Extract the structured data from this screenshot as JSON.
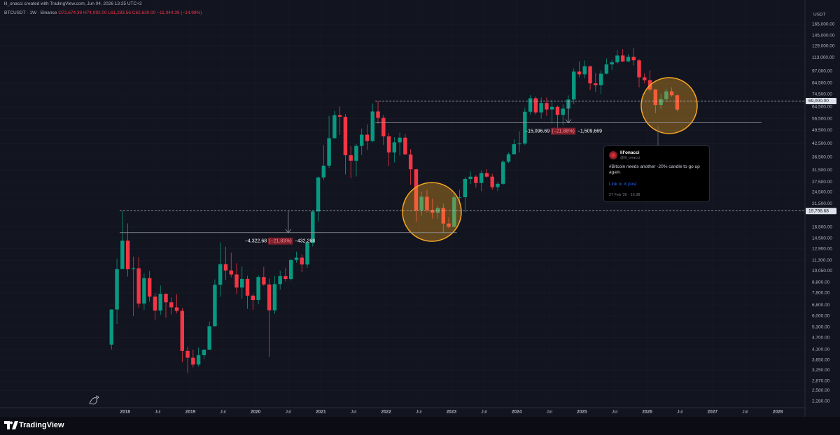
{
  "header": {
    "credit": "lil_onacci created with TradingView.com, Jun 04, 2026 13:25 UTC+2"
  },
  "readout": {
    "symbol": "BTCUSDT · 1W · Binance",
    "open": "O73,674.39",
    "high": "H74,092.00",
    "low": "L61,283.56",
    "close": "C62,630.00",
    "change": "−11,044.39 (−14.99%)"
  },
  "currency": "USDT",
  "chart_data": {
    "type": "candlestick",
    "log_scale": true,
    "grid": true,
    "up_color": "#089981",
    "down_color": "#f23645",
    "xlim": [
      "2016-02",
      "2028-06"
    ],
    "xticks": [
      {
        "value": "2018-01",
        "label": "2018"
      },
      {
        "value": "2018-07",
        "label": "Jul"
      },
      {
        "value": "2019-01",
        "label": "2019"
      },
      {
        "value": "2019-07",
        "label": "Jul"
      },
      {
        "value": "2020-01",
        "label": "2020"
      },
      {
        "value": "2020-07",
        "label": "Jul"
      },
      {
        "value": "2021-01",
        "label": "2021"
      },
      {
        "value": "2021-07",
        "label": "Jul"
      },
      {
        "value": "2022-01",
        "label": "2022"
      },
      {
        "value": "2022-07",
        "label": "Jul"
      },
      {
        "value": "2023-01",
        "label": "2023"
      },
      {
        "value": "2023-07",
        "label": "Jul"
      },
      {
        "value": "2024-01",
        "label": "2024"
      },
      {
        "value": "2024-07",
        "label": "Jul"
      },
      {
        "value": "2025-01",
        "label": "2025"
      },
      {
        "value": "2025-07",
        "label": "Jul"
      },
      {
        "value": "2026-01",
        "label": "2026"
      },
      {
        "value": "2026-07",
        "label": "Jul"
      },
      {
        "value": "2027-01",
        "label": "2027"
      },
      {
        "value": "2027-07",
        "label": "Jul"
      },
      {
        "value": "2028-01",
        "label": "2028"
      }
    ],
    "ylim": [
      2120,
      193000
    ],
    "yticks": [
      {
        "value": 165000,
        "label": "165,000.00"
      },
      {
        "value": 145000,
        "label": "145,000.00"
      },
      {
        "value": 129000,
        "label": "129,000.00"
      },
      {
        "value": 113000,
        "label": "113,000.00"
      },
      {
        "value": 97000,
        "label": "97,000.00"
      },
      {
        "value": 84500,
        "label": "84,500.00"
      },
      {
        "value": 74500,
        "label": "74,500.00"
      },
      {
        "value": 64500,
        "label": "64,500.00"
      },
      {
        "value": 56500,
        "label": "56,500.00"
      },
      {
        "value": 49500,
        "label": "49,500.00"
      },
      {
        "value": 42500,
        "label": "42,500.00"
      },
      {
        "value": 36500,
        "label": "36,500.00"
      },
      {
        "value": 31500,
        "label": "31,500.00"
      },
      {
        "value": 27500,
        "label": "27,500.00"
      },
      {
        "value": 24500,
        "label": "24,500.00"
      },
      {
        "value": 21500,
        "label": "21,500.00"
      },
      {
        "value": 16500,
        "label": "16,500.00"
      },
      {
        "value": 14500,
        "label": "14,500.00"
      },
      {
        "value": 12900,
        "label": "12,900.00"
      },
      {
        "value": 11300,
        "label": "11,300.00"
      },
      {
        "value": 10050,
        "label": "10,050.00"
      },
      {
        "value": 8800,
        "label": "8,800.00"
      },
      {
        "value": 7800,
        "label": "7,800.00"
      },
      {
        "value": 6800,
        "label": "6,800.00"
      },
      {
        "value": 6000,
        "label": "6,000.00"
      },
      {
        "value": 5300,
        "label": "5,300.00"
      },
      {
        "value": 4700,
        "label": "4,700.00"
      },
      {
        "value": 4100,
        "label": "4,100.00"
      },
      {
        "value": 3650,
        "label": "3,650.00"
      },
      {
        "value": 3250,
        "label": "3,250.00"
      },
      {
        "value": 2870,
        "label": "2,870.00"
      },
      {
        "value": 2580,
        "label": "2,580.00"
      },
      {
        "value": 2280,
        "label": "2,280.00"
      }
    ],
    "x": [
      "2017-10",
      "2017-11",
      "2017-12",
      "2018-01",
      "2018-02",
      "2018-03",
      "2018-04",
      "2018-05",
      "2018-06",
      "2018-07",
      "2018-08",
      "2018-09",
      "2018-10",
      "2018-11",
      "2018-12",
      "2019-01",
      "2019-02",
      "2019-03",
      "2019-04",
      "2019-05",
      "2019-06",
      "2019-07",
      "2019-08",
      "2019-09",
      "2019-10",
      "2019-11",
      "2019-12",
      "2020-01",
      "2020-02",
      "2020-03",
      "2020-04",
      "2020-05",
      "2020-06",
      "2020-07",
      "2020-08",
      "2020-09",
      "2020-10",
      "2020-11",
      "2020-12",
      "2021-01",
      "2021-02",
      "2021-03",
      "2021-04",
      "2021-05",
      "2021-06",
      "2021-07",
      "2021-08",
      "2021-09",
      "2021-10",
      "2021-11",
      "2021-12",
      "2022-01",
      "2022-02",
      "2022-03",
      "2022-04",
      "2022-05",
      "2022-06",
      "2022-07",
      "2022-08",
      "2022-09",
      "2022-10",
      "2022-11",
      "2022-12",
      "2023-01",
      "2023-02",
      "2023-03",
      "2023-04",
      "2023-05",
      "2023-06",
      "2023-07",
      "2023-08",
      "2023-09",
      "2023-10",
      "2023-11",
      "2023-12",
      "2024-01",
      "2024-02",
      "2024-03",
      "2024-04",
      "2024-05",
      "2024-06",
      "2024-07",
      "2024-08",
      "2024-09",
      "2024-10",
      "2024-11",
      "2024-12",
      "2025-01",
      "2025-02",
      "2025-03",
      "2025-04",
      "2025-05",
      "2025-06",
      "2025-07",
      "2025-08",
      "2025-09",
      "2025-10",
      "2025-11",
      "2025-12",
      "2026-01",
      "2026-02",
      "2026-03",
      "2026-04",
      "2026-05",
      "2026-06"
    ],
    "open": [
      4340,
      6470,
      10230,
      14150,
      10220,
      10330,
      6920,
      9240,
      7490,
      6390,
      7730,
      7020,
      6630,
      6370,
      4040,
      3740,
      3460,
      3850,
      4100,
      5350,
      8570,
      10820,
      10080,
      9630,
      8300,
      9150,
      7570,
      7200,
      9350,
      8600,
      6410,
      8630,
      9450,
      9140,
      11350,
      11650,
      10780,
      13800,
      19700,
      28990,
      33140,
      45240,
      58800,
      57720,
      37300,
      35040,
      41460,
      47100,
      43820,
      61300,
      57000,
      46200,
      38480,
      43190,
      45540,
      37640,
      31790,
      19940,
      23290,
      20050,
      19420,
      20490,
      17170,
      16540,
      23130,
      23150,
      28480,
      29230,
      27220,
      30470,
      29230,
      25940,
      26960,
      34640,
      37720,
      42280,
      42580,
      61130,
      71280,
      60670,
      67530,
      62680,
      64630,
      58970,
      63330,
      70220,
      96400,
      93430,
      102430,
      84350,
      82550,
      94200,
      104600,
      107150,
      115760,
      108240,
      114050,
      109600,
      90400,
      87500,
      78600,
      66000,
      70500,
      77000,
      73674.39
    ],
    "high": [
      6470,
      11500,
      19798.68,
      17200,
      11800,
      11700,
      9750,
      10000,
      7780,
      8490,
      7760,
      7410,
      7680,
      6600,
      4240,
      4100,
      4200,
      4120,
      5640,
      9100,
      13880,
      13200,
      12330,
      10950,
      10540,
      9510,
      7750,
      9580,
      10500,
      9190,
      9460,
      10070,
      10380,
      11440,
      12480,
      12090,
      14100,
      19900,
      29300,
      41950,
      58350,
      61780,
      64850,
      59500,
      41330,
      42400,
      50500,
      52920,
      67000,
      69000,
      59040,
      47990,
      45800,
      48190,
      47440,
      40020,
      31960,
      24670,
      25210,
      22800,
      20990,
      21480,
      18390,
      23960,
      25250,
      29180,
      31000,
      29820,
      31430,
      31800,
      30250,
      27480,
      35200,
      38450,
      44730,
      48970,
      64000,
      73780,
      72800,
      71980,
      71950,
      70080,
      65600,
      66500,
      73620,
      99800,
      108350,
      109350,
      102500,
      95000,
      97900,
      111980,
      110400,
      123200,
      124450,
      117900,
      126200,
      111200,
      94600,
      97900,
      79000,
      74500,
      79500,
      80500,
      74092
    ],
    "low": [
      4110,
      5500,
      10800,
      9400,
      6000,
      6600,
      6430,
      7060,
      5750,
      6080,
      5880,
      6120,
      6200,
      3550,
      3150,
      3350,
      3390,
      3690,
      4090,
      5330,
      7480,
      9070,
      9320,
      7710,
      7300,
      6515,
      6430,
      6870,
      8450,
      3780,
      6150,
      8100,
      8900,
      8980,
      10990,
      9880,
      10370,
      13220,
      17570,
      28130,
      32300,
      45000,
      47000,
      30000,
      28800,
      29280,
      37330,
      39600,
      43280,
      53250,
      42000,
      32920,
      34320,
      37160,
      37600,
      26700,
      17570,
      18780,
      19520,
      18150,
      18190,
      15480,
      16260,
      16500,
      21350,
      19550,
      26940,
      25810,
      24800,
      28860,
      25170,
      24900,
      26560,
      34100,
      37620,
      38550,
      41880,
      59320,
      59190,
      56550,
      58400,
      53500,
      49000,
      52550,
      58900,
      66800,
      90500,
      89160,
      78250,
      76600,
      74500,
      93350,
      98200,
      105250,
      107300,
      107270,
      103500,
      80600,
      84400,
      76000,
      60100,
      63000,
      68500,
      72500,
      61283.56
    ],
    "close": [
      6470,
      10230,
      14150,
      10220,
      10330,
      6920,
      9240,
      7490,
      6390,
      7730,
      7020,
      6630,
      6370,
      4040,
      3740,
      3460,
      3850,
      4100,
      5350,
      8570,
      10820,
      10080,
      9630,
      8300,
      9150,
      7570,
      7200,
      9350,
      8600,
      6410,
      8630,
      9450,
      9140,
      11350,
      11650,
      10780,
      13800,
      19700,
      28990,
      33140,
      45240,
      58800,
      57720,
      37300,
      35040,
      41460,
      47100,
      43820,
      61300,
      57000,
      46200,
      38480,
      43190,
      45540,
      37640,
      31790,
      19940,
      23290,
      20050,
      19420,
      20490,
      17170,
      16540,
      23130,
      23150,
      28480,
      29230,
      27220,
      30470,
      29230,
      25940,
      26960,
      34640,
      37720,
      42280,
      42580,
      61130,
      71280,
      60670,
      67530,
      62680,
      64630,
      58970,
      63330,
      70220,
      96400,
      93430,
      102430,
      84350,
      82550,
      94200,
      104600,
      107150,
      115760,
      108240,
      114050,
      109600,
      90400,
      87500,
      78600,
      66000,
      70500,
      77000,
      73674.39,
      62630
    ],
    "levels": [
      {
        "x": "2021-11",
        "value": 69000,
        "label": "69,000.00"
      },
      {
        "x": "2017-12",
        "value": 19798.68,
        "label": "19,798.68"
      }
    ],
    "measurements": [
      {
        "x": [
          "2017-12",
          "2023-02"
        ],
        "start": 19798.68,
        "change": {
          "value": -4322.68,
          "label": "−4,322.68"
        },
        "percent": {
          "value": -21.83,
          "label": "(−21.83%)"
        },
        "quantity": {
          "value": -432268,
          "label": "−432,268"
        }
      },
      {
        "x": [
          "2021-11",
          "2027-10"
        ],
        "start": 69000,
        "change": {
          "value": -15096.69,
          "label": "−15,096.69"
        },
        "percent": {
          "value": -21.88,
          "label": "(−21.88%)"
        },
        "quantity": {
          "value": -1509669,
          "label": "−1,509,669"
        }
      }
    ]
  },
  "tweet": {
    "name": "lil'onacci",
    "handle": "@lil_onacci",
    "text": "#Bitcoin needs another -20% candle to go up again.",
    "link": "Link to X post",
    "time": "27 Feb '26 · 16:38"
  },
  "footer": {
    "brand": "TradingView"
  }
}
